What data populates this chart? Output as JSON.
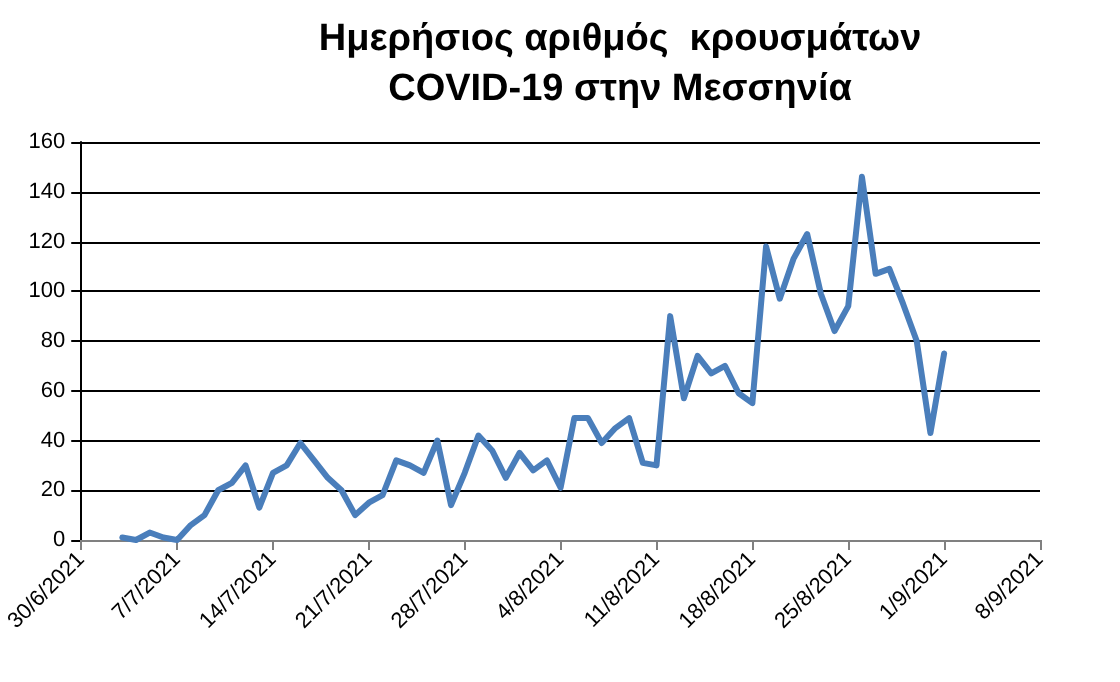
{
  "chart_data": {
    "type": "line",
    "title": "Ημερήσιος αριθμός  κρουσμάτων\nCOVID-19 στην Μεσσηνία",
    "x": [
      "2021-07-03",
      "2021-07-04",
      "2021-07-05",
      "2021-07-06",
      "2021-07-07",
      "2021-07-08",
      "2021-07-09",
      "2021-07-10",
      "2021-07-11",
      "2021-07-12",
      "2021-07-13",
      "2021-07-14",
      "2021-07-15",
      "2021-07-16",
      "2021-07-17",
      "2021-07-18",
      "2021-07-19",
      "2021-07-20",
      "2021-07-21",
      "2021-07-22",
      "2021-07-23",
      "2021-07-24",
      "2021-07-25",
      "2021-07-26",
      "2021-07-27",
      "2021-07-28",
      "2021-07-29",
      "2021-07-30",
      "2021-07-31",
      "2021-08-01",
      "2021-08-02",
      "2021-08-03",
      "2021-08-04",
      "2021-08-05",
      "2021-08-06",
      "2021-08-07",
      "2021-08-08",
      "2021-08-09",
      "2021-08-10",
      "2021-08-11",
      "2021-08-12",
      "2021-08-13",
      "2021-08-14",
      "2021-08-15",
      "2021-08-16",
      "2021-08-17",
      "2021-08-18",
      "2021-08-19",
      "2021-08-20",
      "2021-08-21",
      "2021-08-22",
      "2021-08-23",
      "2021-08-24",
      "2021-08-25",
      "2021-08-26",
      "2021-08-27",
      "2021-08-28",
      "2021-08-29",
      "2021-08-30",
      "2021-08-31",
      "2021-09-01"
    ],
    "series": [
      {
        "color": "#4a7ebb",
        "values": [
          1,
          0,
          3,
          1,
          0,
          6,
          10,
          20,
          23,
          30,
          13,
          27,
          30,
          39,
          32,
          25,
          20,
          10,
          15,
          18,
          32,
          30,
          27,
          40,
          14,
          27,
          42,
          36,
          25,
          35,
          28,
          32,
          21,
          49,
          49,
          39,
          45,
          49,
          31,
          30,
          90,
          57,
          74,
          67,
          70,
          59,
          55,
          118,
          97,
          113,
          123,
          99,
          84,
          94,
          146,
          107,
          109,
          95,
          80,
          43,
          75
        ]
      }
    ],
    "xlim": [
      "2021-06-30",
      "2021-09-08"
    ],
    "xticks": [
      {
        "value": "2021-06-30",
        "label": "30/6/2021"
      },
      {
        "value": "2021-07-07",
        "label": "7/7/2021"
      },
      {
        "value": "2021-07-14",
        "label": "14/7/2021"
      },
      {
        "value": "2021-07-21",
        "label": "21/7/2021"
      },
      {
        "value": "2021-07-28",
        "label": "28/7/2021"
      },
      {
        "value": "2021-08-04",
        "label": "4/8/2021"
      },
      {
        "value": "2021-08-11",
        "label": "11/8/2021"
      },
      {
        "value": "2021-08-18",
        "label": "18/8/2021"
      },
      {
        "value": "2021-08-25",
        "label": "25/8/2021"
      },
      {
        "value": "2021-09-01",
        "label": "1/9/2021"
      },
      {
        "value": "2021-09-08",
        "label": "8/9/2021"
      }
    ],
    "ylim": [
      0,
      160
    ],
    "yticks": [
      0,
      20,
      40,
      60,
      80,
      100,
      120,
      140,
      160
    ],
    "grid": "y",
    "marker": "none",
    "line_style": "solid"
  }
}
